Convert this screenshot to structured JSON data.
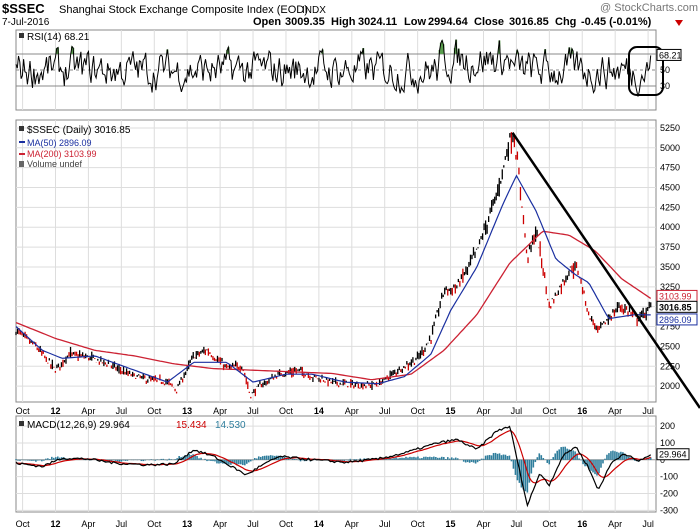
{
  "header": {
    "ticker": "$SSEC",
    "title": "Shanghai Stock Exchange Composite Index (EOD)",
    "exchange": "INDX",
    "watermark": "@ StockCharts.com",
    "date": "7-Jul-2016",
    "open_label": "Open",
    "open": "3009.35",
    "high_label": "High",
    "high": "3024.11",
    "low_label": "Low",
    "low": "2994.64",
    "close_label": "Close",
    "close": "3016.85",
    "chg_label": "Chg",
    "chg": "-0.45 (-0.01%)"
  },
  "colors": {
    "price": "#000000",
    "up": "#000000",
    "down": "#cc0000",
    "ma50": "#1a2fa0",
    "ma200": "#cc2233",
    "rsi": "#000000",
    "macd": "#000000",
    "signal": "#cc0000",
    "histogram": "#2e7d9c",
    "rsi_fill": "#5a9e4e",
    "grid": "#dddddd"
  },
  "chart_data": [
    {
      "type": "line",
      "panel": "rsi",
      "legend": "RSI(14) 68.21",
      "last_value": "68.21",
      "ylim": [
        0,
        100
      ],
      "reference_lines": [
        70,
        50,
        30
      ],
      "tick_labels": [
        "70",
        "50",
        "30"
      ]
    },
    {
      "type": "line",
      "panel": "price",
      "title": "$SSEC (Daily) 3016.85",
      "legend": [
        "$SSEC (Daily) 3016.85",
        "MA(50) 2896.09",
        "MA(200) 3103.99",
        "Volume undef"
      ],
      "ylim": [
        1800,
        5350
      ],
      "y_ticks": [
        5250,
        5000,
        4750,
        4500,
        4250,
        4000,
        3750,
        3500,
        3250,
        3000,
        2750,
        2500,
        2250,
        2000
      ],
      "value_tags": [
        {
          "label": "3103.99",
          "value": 3103.99,
          "series": "ma200"
        },
        {
          "label": "3016.85",
          "value": 3016.85,
          "series": "price"
        },
        {
          "label": "2896.09",
          "value": 2896.09,
          "series": "ma50"
        }
      ],
      "x_range": [
        2011.7,
        2016.56
      ],
      "price_keypoints": [
        [
          2011.7,
          2700
        ],
        [
          2011.85,
          2500
        ],
        [
          2012.0,
          2200
        ],
        [
          2012.1,
          2400
        ],
        [
          2012.25,
          2360
        ],
        [
          2012.4,
          2280
        ],
        [
          2012.55,
          2150
        ],
        [
          2012.7,
          2080
        ],
        [
          2012.85,
          2050
        ],
        [
          2012.92,
          1950
        ],
        [
          2013.05,
          2380
        ],
        [
          2013.15,
          2450
        ],
        [
          2013.3,
          2230
        ],
        [
          2013.42,
          2250
        ],
        [
          2013.48,
          1880
        ],
        [
          2013.55,
          2000
        ],
        [
          2013.7,
          2150
        ],
        [
          2013.85,
          2200
        ],
        [
          2013.95,
          2120
        ],
        [
          2014.1,
          2050
        ],
        [
          2014.3,
          2010
        ],
        [
          2014.45,
          2020
        ],
        [
          2014.6,
          2200
        ],
        [
          2014.75,
          2350
        ],
        [
          2014.85,
          2600
        ],
        [
          2014.95,
          3200
        ],
        [
          2015.05,
          3250
        ],
        [
          2015.2,
          3700
        ],
        [
          2015.35,
          4400
        ],
        [
          2015.45,
          5100
        ],
        [
          2015.48,
          5178
        ],
        [
          2015.55,
          4200
        ],
        [
          2015.58,
          3600
        ],
        [
          2015.65,
          3950
        ],
        [
          2015.7,
          3500
        ],
        [
          2015.75,
          3000
        ],
        [
          2015.85,
          3300
        ],
        [
          2015.92,
          3500
        ],
        [
          2015.97,
          3450
        ],
        [
          2016.05,
          2900
        ],
        [
          2016.12,
          2700
        ],
        [
          2016.2,
          2850
        ],
        [
          2016.28,
          3000
        ],
        [
          2016.35,
          2950
        ],
        [
          2016.42,
          2850
        ],
        [
          2016.5,
          2950
        ],
        [
          2016.52,
          3016.85
        ]
      ],
      "ma50_keypoints": [
        [
          2011.7,
          2750
        ],
        [
          2011.9,
          2450
        ],
        [
          2012.05,
          2350
        ],
        [
          2012.3,
          2380
        ],
        [
          2012.6,
          2200
        ],
        [
          2012.85,
          2050
        ],
        [
          2013.05,
          2300
        ],
        [
          2013.3,
          2300
        ],
        [
          2013.5,
          2050
        ],
        [
          2013.75,
          2150
        ],
        [
          2013.95,
          2150
        ],
        [
          2014.2,
          2050
        ],
        [
          2014.45,
          2030
        ],
        [
          2014.65,
          2120
        ],
        [
          2014.85,
          2400
        ],
        [
          2015.0,
          2950
        ],
        [
          2015.2,
          3500
        ],
        [
          2015.4,
          4300
        ],
        [
          2015.5,
          4650
        ],
        [
          2015.65,
          4200
        ],
        [
          2015.8,
          3600
        ],
        [
          2015.95,
          3400
        ],
        [
          2016.05,
          3300
        ],
        [
          2016.2,
          2850
        ],
        [
          2016.4,
          2900
        ],
        [
          2016.52,
          2896.09
        ]
      ],
      "ma200_keypoints": [
        [
          2011.7,
          2800
        ],
        [
          2012.0,
          2600
        ],
        [
          2012.3,
          2450
        ],
        [
          2012.6,
          2380
        ],
        [
          2012.9,
          2280
        ],
        [
          2013.2,
          2220
        ],
        [
          2013.5,
          2200
        ],
        [
          2013.8,
          2180
        ],
        [
          2014.1,
          2160
        ],
        [
          2014.4,
          2080
        ],
        [
          2014.7,
          2150
        ],
        [
          2014.95,
          2450
        ],
        [
          2015.2,
          2900
        ],
        [
          2015.45,
          3550
        ],
        [
          2015.7,
          3950
        ],
        [
          2015.9,
          3900
        ],
        [
          2016.1,
          3700
        ],
        [
          2016.3,
          3350
        ],
        [
          2016.52,
          3103.99
        ]
      ],
      "annotations": [
        {
          "type": "trendline",
          "from": [
            2015.47,
            5190
          ],
          "to": [
            2016.56,
            1850
          ]
        }
      ]
    },
    {
      "type": "line",
      "panel": "macd",
      "legend": [
        "MACD(12,26,9) 29.964",
        "15.434",
        "14.530"
      ],
      "series": [
        {
          "name": "MACD(12,26,9)",
          "last": 29.964
        },
        {
          "name": "Signal",
          "last": 15.434
        },
        {
          "name": "Histogram",
          "last": 14.53
        }
      ],
      "ylim": [
        -310,
        260
      ],
      "y_ticks": [
        200,
        100,
        0,
        -100,
        -200,
        -300
      ],
      "tick_labels": [
        "200",
        "100",
        "0",
        "-100",
        "-200",
        "-300"
      ],
      "last_value_label": "29.964",
      "macd_keypoints": [
        [
          2011.7,
          -20
        ],
        [
          2011.9,
          -40
        ],
        [
          2012.05,
          10
        ],
        [
          2012.25,
          5
        ],
        [
          2012.45,
          -20
        ],
        [
          2012.7,
          -30
        ],
        [
          2012.9,
          -25
        ],
        [
          2013.05,
          60
        ],
        [
          2013.2,
          20
        ],
        [
          2013.45,
          -90
        ],
        [
          2013.55,
          -40
        ],
        [
          2013.7,
          20
        ],
        [
          2013.95,
          0
        ],
        [
          2014.2,
          -15
        ],
        [
          2014.45,
          5
        ],
        [
          2014.65,
          40
        ],
        [
          2014.9,
          100
        ],
        [
          2015.05,
          120
        ],
        [
          2015.2,
          60
        ],
        [
          2015.35,
          170
        ],
        [
          2015.45,
          200
        ],
        [
          2015.52,
          -50
        ],
        [
          2015.58,
          -270
        ],
        [
          2015.68,
          -80
        ],
        [
          2015.75,
          -150
        ],
        [
          2015.85,
          20
        ],
        [
          2015.95,
          80
        ],
        [
          2016.05,
          -50
        ],
        [
          2016.12,
          -180
        ],
        [
          2016.22,
          -20
        ],
        [
          2016.32,
          40
        ],
        [
          2016.42,
          -10
        ],
        [
          2016.52,
          29.964
        ]
      ]
    }
  ],
  "x_axis": {
    "ticks": [
      {
        "label": "Oct",
        "t": 2011.75,
        "bold": false
      },
      {
        "label": "12",
        "t": 2012.0,
        "bold": true
      },
      {
        "label": "Apr",
        "t": 2012.25,
        "bold": false
      },
      {
        "label": "Jul",
        "t": 2012.5,
        "bold": false
      },
      {
        "label": "Oct",
        "t": 2012.75,
        "bold": false
      },
      {
        "label": "13",
        "t": 2013.0,
        "bold": true
      },
      {
        "label": "Apr",
        "t": 2013.25,
        "bold": false
      },
      {
        "label": "Jul",
        "t": 2013.5,
        "bold": false
      },
      {
        "label": "Oct",
        "t": 2013.75,
        "bold": false
      },
      {
        "label": "14",
        "t": 2014.0,
        "bold": true
      },
      {
        "label": "Apr",
        "t": 2014.25,
        "bold": false
      },
      {
        "label": "Jul",
        "t": 2014.5,
        "bold": false
      },
      {
        "label": "Oct",
        "t": 2014.75,
        "bold": false
      },
      {
        "label": "15",
        "t": 2015.0,
        "bold": true
      },
      {
        "label": "Apr",
        "t": 2015.25,
        "bold": false
      },
      {
        "label": "Jul",
        "t": 2015.5,
        "bold": false
      },
      {
        "label": "Oct",
        "t": 2015.75,
        "bold": false
      },
      {
        "label": "16",
        "t": 2016.0,
        "bold": true
      },
      {
        "label": "Apr",
        "t": 2016.25,
        "bold": false
      },
      {
        "label": "Jul",
        "t": 2016.5,
        "bold": false
      }
    ]
  }
}
